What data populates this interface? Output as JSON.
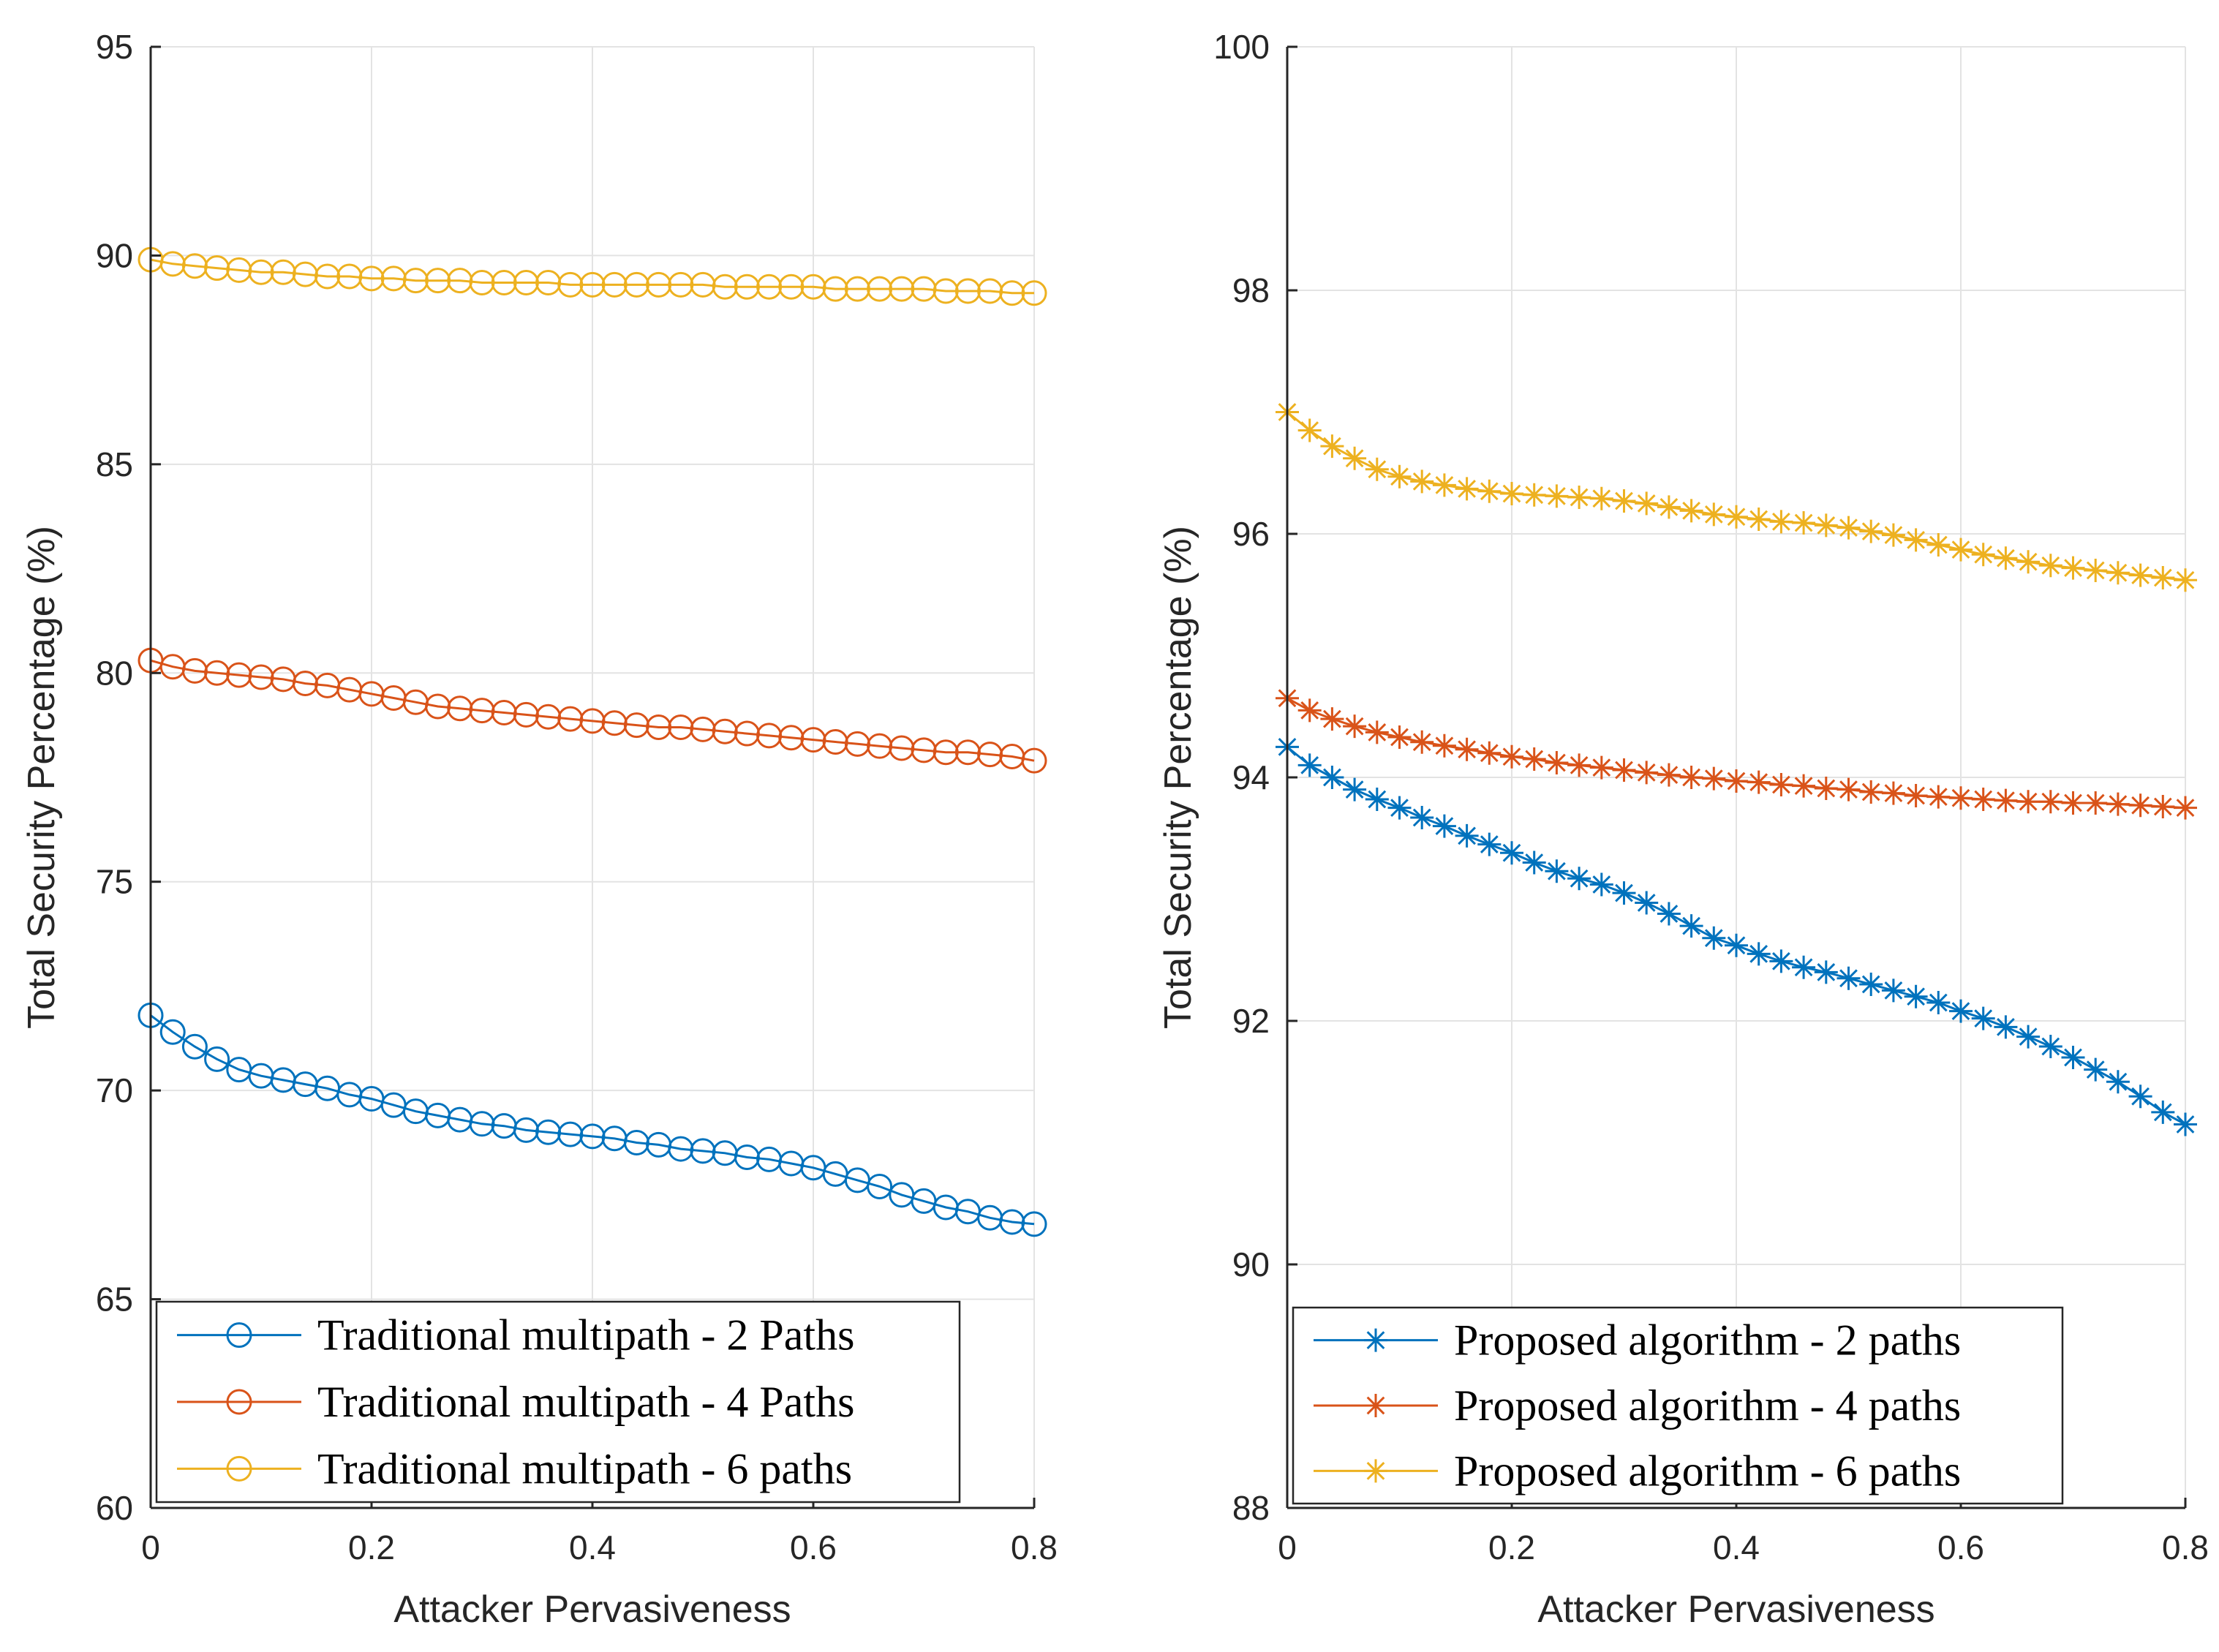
{
  "colors": {
    "blue": "#0072BD",
    "orange": "#D95319",
    "yellow": "#EDB120",
    "grid": "#e3e3e3",
    "axis": "#262626"
  },
  "chart_data": [
    {
      "type": "line",
      "marker": "circle",
      "xlabel": "Attacker Pervasiveness",
      "ylabel": "Total Security Percentage (%)",
      "xlim": [
        0,
        0.8
      ],
      "ylim": [
        60,
        95
      ],
      "xticks": [
        0,
        0.2,
        0.4,
        0.6,
        0.8
      ],
      "xtick_labels": [
        "0",
        "0.2",
        "0.4",
        "0.6",
        "0.8"
      ],
      "yticks": [
        60,
        65,
        70,
        75,
        80,
        85,
        90,
        95
      ],
      "ytick_labels": [
        "60",
        "65",
        "70",
        "75",
        "80",
        "85",
        "90",
        "95"
      ],
      "grid": true,
      "legend_position": "bottom-left",
      "x": [
        0,
        0.02,
        0.04,
        0.06,
        0.08,
        0.1,
        0.12,
        0.14,
        0.16,
        0.18,
        0.2,
        0.22,
        0.24,
        0.26,
        0.28,
        0.3,
        0.32,
        0.34,
        0.36,
        0.38,
        0.4,
        0.42,
        0.44,
        0.46,
        0.48,
        0.5,
        0.52,
        0.54,
        0.56,
        0.58,
        0.6,
        0.62,
        0.64,
        0.66,
        0.68,
        0.7,
        0.72,
        0.74,
        0.76,
        0.78,
        0.8
      ],
      "series": [
        {
          "name": "Traditional multipath - 2 Paths",
          "color": "#0072BD",
          "values": [
            71.8,
            71.4,
            71.05,
            70.75,
            70.5,
            70.35,
            70.25,
            70.15,
            70.05,
            69.9,
            69.8,
            69.65,
            69.5,
            69.4,
            69.3,
            69.2,
            69.15,
            69.05,
            69.0,
            68.95,
            68.9,
            68.85,
            68.75,
            68.7,
            68.6,
            68.55,
            68.5,
            68.4,
            68.35,
            68.25,
            68.15,
            68.0,
            67.85,
            67.7,
            67.5,
            67.35,
            67.2,
            67.1,
            66.95,
            66.85,
            66.8
          ]
        },
        {
          "name": "Traditional multipath - 4 Paths",
          "color": "#D95319",
          "values": [
            80.3,
            80.15,
            80.05,
            80.0,
            79.95,
            79.9,
            79.85,
            79.75,
            79.7,
            79.6,
            79.5,
            79.4,
            79.3,
            79.2,
            79.15,
            79.1,
            79.05,
            79.0,
            78.95,
            78.9,
            78.85,
            78.8,
            78.75,
            78.7,
            78.7,
            78.65,
            78.6,
            78.55,
            78.5,
            78.45,
            78.4,
            78.35,
            78.3,
            78.25,
            78.2,
            78.15,
            78.1,
            78.1,
            78.05,
            78.0,
            77.9
          ]
        },
        {
          "name": "Traditional multipath - 6 paths",
          "color": "#EDB120",
          "values": [
            89.9,
            89.8,
            89.75,
            89.7,
            89.65,
            89.6,
            89.6,
            89.55,
            89.5,
            89.5,
            89.45,
            89.45,
            89.4,
            89.4,
            89.4,
            89.35,
            89.35,
            89.35,
            89.35,
            89.3,
            89.3,
            89.3,
            89.3,
            89.3,
            89.3,
            89.3,
            89.25,
            89.25,
            89.25,
            89.25,
            89.25,
            89.2,
            89.2,
            89.2,
            89.2,
            89.2,
            89.15,
            89.15,
            89.15,
            89.1,
            89.1
          ]
        }
      ]
    },
    {
      "type": "line",
      "marker": "asterisk",
      "xlabel": "Attacker Pervasiveness",
      "ylabel": "Total Security Percentage (%)",
      "xlim": [
        0,
        0.8
      ],
      "ylim": [
        88,
        100
      ],
      "xticks": [
        0,
        0.2,
        0.4,
        0.6,
        0.8
      ],
      "xtick_labels": [
        "0",
        "0.2",
        "0.4",
        "0.6",
        "0.8"
      ],
      "yticks": [
        88,
        90,
        92,
        94,
        96,
        98,
        100
      ],
      "ytick_labels": [
        "88",
        "90",
        "92",
        "94",
        "96",
        "98",
        "100"
      ],
      "grid": true,
      "legend_position": "bottom-left",
      "x": [
        0,
        0.02,
        0.04,
        0.06,
        0.08,
        0.1,
        0.12,
        0.14,
        0.16,
        0.18,
        0.2,
        0.22,
        0.24,
        0.26,
        0.28,
        0.3,
        0.32,
        0.34,
        0.36,
        0.38,
        0.4,
        0.42,
        0.44,
        0.46,
        0.48,
        0.5,
        0.52,
        0.54,
        0.56,
        0.58,
        0.6,
        0.62,
        0.64,
        0.66,
        0.68,
        0.7,
        0.72,
        0.74,
        0.76,
        0.78,
        0.8
      ],
      "series": [
        {
          "name": "Proposed algorithm - 2 paths",
          "color": "#0072BD",
          "values": [
            94.25,
            94.1,
            94.0,
            93.9,
            93.82,
            93.75,
            93.67,
            93.6,
            93.52,
            93.45,
            93.38,
            93.3,
            93.23,
            93.17,
            93.12,
            93.05,
            92.97,
            92.88,
            92.78,
            92.68,
            92.62,
            92.55,
            92.49,
            92.44,
            92.4,
            92.35,
            92.3,
            92.25,
            92.2,
            92.15,
            92.08,
            92.02,
            91.95,
            91.87,
            91.79,
            91.7,
            91.6,
            91.5,
            91.38,
            91.25,
            91.15
          ]
        },
        {
          "name": "Proposed algorithm - 4 paths",
          "color": "#D95319",
          "values": [
            94.65,
            94.55,
            94.48,
            94.42,
            94.37,
            94.33,
            94.29,
            94.26,
            94.23,
            94.2,
            94.17,
            94.15,
            94.12,
            94.1,
            94.08,
            94.06,
            94.04,
            94.02,
            94.0,
            93.99,
            93.97,
            93.96,
            93.94,
            93.93,
            93.91,
            93.9,
            93.88,
            93.87,
            93.85,
            93.84,
            93.83,
            93.82,
            93.81,
            93.8,
            93.8,
            93.79,
            93.79,
            93.78,
            93.77,
            93.76,
            93.75
          ]
        },
        {
          "name": "Proposed algorithm - 6 paths",
          "color": "#EDB120",
          "values": [
            97.0,
            96.85,
            96.72,
            96.62,
            96.53,
            96.47,
            96.43,
            96.4,
            96.37,
            96.35,
            96.33,
            96.32,
            96.31,
            96.3,
            96.29,
            96.27,
            96.25,
            96.22,
            96.19,
            96.16,
            96.14,
            96.12,
            96.1,
            96.09,
            96.07,
            96.05,
            96.02,
            95.99,
            95.95,
            95.91,
            95.87,
            95.83,
            95.8,
            95.77,
            95.74,
            95.72,
            95.7,
            95.68,
            95.66,
            95.64,
            95.62
          ]
        }
      ]
    }
  ]
}
